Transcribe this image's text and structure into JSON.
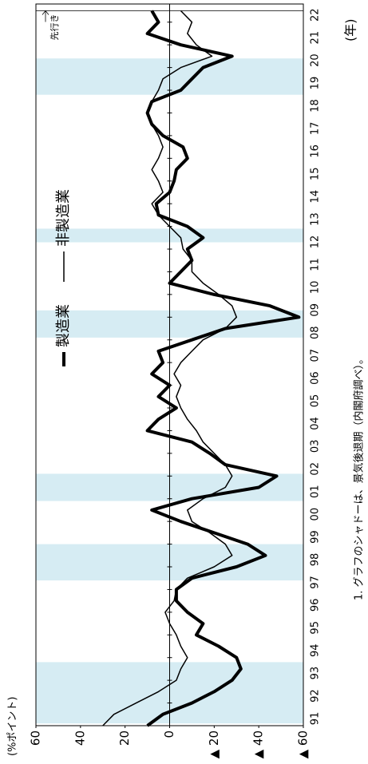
{
  "chart_data": {
    "type": "line",
    "y_label": "(%ポイント)",
    "x_label": "(年)",
    "note": "1. グラフのシャドーは、景気後退期（内閣府調べ）。",
    "annotation": "先行き",
    "xlim": [
      1991,
      2022.8
    ],
    "ylim": [
      -60,
      60
    ],
    "yticks": [
      60,
      40,
      20,
      0,
      {
        "value": -20,
        "label": "▲ 20"
      },
      {
        "value": -40,
        "label": "▲ 40"
      },
      {
        "value": -60,
        "label": "▲ 60"
      }
    ],
    "xticks": [
      {
        "value": 1991,
        "label": "91"
      },
      {
        "value": 1992,
        "label": "92"
      },
      {
        "value": 1993,
        "label": "93"
      },
      {
        "value": 1994,
        "label": "94"
      },
      {
        "value": 1995,
        "label": "95"
      },
      {
        "value": 1996,
        "label": "96"
      },
      {
        "value": 1997,
        "label": "97"
      },
      {
        "value": 1998,
        "label": "98"
      },
      {
        "value": 1999,
        "label": "99"
      },
      {
        "value": 2000,
        "label": "00"
      },
      {
        "value": 2001,
        "label": "01"
      },
      {
        "value": 2002,
        "label": "02"
      },
      {
        "value": 2003,
        "label": "03"
      },
      {
        "value": 2004,
        "label": "04"
      },
      {
        "value": 2005,
        "label": "05"
      },
      {
        "value": 2006,
        "label": "06"
      },
      {
        "value": 2007,
        "label": "07"
      },
      {
        "value": 2008,
        "label": "08"
      },
      {
        "value": 2009,
        "label": "09"
      },
      {
        "value": 2010,
        "label": "10"
      },
      {
        "value": 2011,
        "label": "11"
      },
      {
        "value": 2012,
        "label": "12"
      },
      {
        "value": 2013,
        "label": "13"
      },
      {
        "value": 2014,
        "label": "14"
      },
      {
        "value": 2015,
        "label": "15"
      },
      {
        "value": 2016,
        "label": "16"
      },
      {
        "value": 2017,
        "label": "17"
      },
      {
        "value": 2018,
        "label": "18"
      },
      {
        "value": 2019,
        "label": "19"
      },
      {
        "value": 2020,
        "label": "20"
      },
      {
        "value": 2021,
        "label": "21"
      },
      {
        "value": 2022,
        "label": "22"
      }
    ],
    "recessions": [
      [
        1991.1,
        1993.8
      ],
      [
        1997.4,
        1999.0
      ],
      [
        2000.9,
        2002.1
      ],
      [
        2008.1,
        2009.3
      ],
      [
        2012.3,
        2012.9
      ],
      [
        2018.8,
        2020.4
      ]
    ],
    "shade_color": "#d6ecf3",
    "x": [
      1991.0,
      1991.5,
      1992.0,
      1992.5,
      1993.0,
      1993.5,
      1994.0,
      1994.5,
      1995.0,
      1995.5,
      1996.0,
      1996.5,
      1997.0,
      1997.5,
      1998.0,
      1998.5,
      1999.0,
      1999.5,
      2000.0,
      2000.5,
      2001.0,
      2001.5,
      2002.0,
      2002.5,
      2003.0,
      2003.5,
      2004.0,
      2004.5,
      2005.0,
      2005.5,
      2006.0,
      2006.5,
      2007.0,
      2007.5,
      2008.0,
      2008.5,
      2009.0,
      2009.5,
      2010.0,
      2010.5,
      2011.0,
      2011.5,
      2012.0,
      2012.5,
      2013.0,
      2013.5,
      2014.0,
      2014.5,
      2015.0,
      2015.5,
      2016.0,
      2016.5,
      2017.0,
      2017.5,
      2018.0,
      2018.5,
      2019.0,
      2019.5,
      2020.0,
      2020.5,
      2021.0,
      2021.5,
      2022.0,
      2022.5
    ],
    "series": [
      {
        "name": "製造業",
        "color": "#000000",
        "width": 4,
        "values": [
          10,
          3,
          -10,
          -20,
          -28,
          -32,
          -30,
          -22,
          -12,
          -15,
          -8,
          -3,
          -3,
          -10,
          -30,
          -43,
          -35,
          -20,
          -5,
          8,
          -10,
          -40,
          -48,
          -25,
          -18,
          -10,
          10,
          5,
          -3,
          5,
          0,
          8,
          3,
          5,
          -10,
          -25,
          -58,
          -45,
          -20,
          0,
          -5,
          -10,
          -8,
          -15,
          -8,
          5,
          6,
          0,
          -2,
          -3,
          -8,
          -6,
          3,
          8,
          10,
          8,
          -5,
          -10,
          -15,
          -28,
          -5,
          10,
          5,
          8
        ]
      },
      {
        "name": "非製造業",
        "color": "#000000",
        "width": 1.5,
        "values": [
          30,
          25,
          15,
          5,
          -3,
          -5,
          -8,
          -5,
          -3,
          0,
          2,
          -2,
          -3,
          -8,
          -20,
          -28,
          -25,
          -18,
          -10,
          -8,
          -15,
          -25,
          -28,
          -25,
          -20,
          -15,
          -12,
          -8,
          -5,
          -3,
          -5,
          -2,
          -5,
          -10,
          -15,
          -25,
          -30,
          -28,
          -22,
          -15,
          -10,
          -10,
          -6,
          -5,
          0,
          5,
          8,
          3,
          5,
          8,
          5,
          3,
          5,
          8,
          10,
          8,
          5,
          3,
          -5,
          -19,
          -12,
          -8,
          -10,
          -5
        ]
      }
    ]
  }
}
